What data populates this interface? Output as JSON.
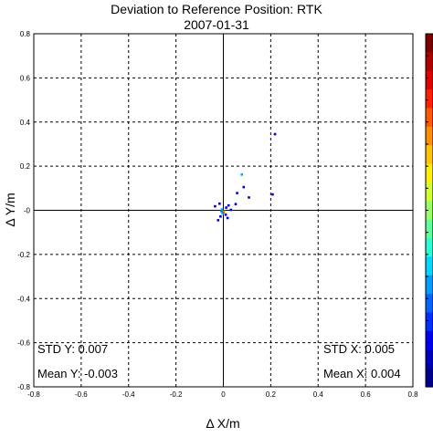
{
  "chart_data": {
    "type": "scatter",
    "title": "Deviation to Reference Position: RTK",
    "subtitle": "2007-01-31",
    "xlabel": "Δ X/m",
    "ylabel": "Δ Y/m",
    "xlim": [
      -0.8,
      0.8
    ],
    "ylim": [
      -0.8,
      0.8
    ],
    "x_ticks": [
      -0.8,
      -0.6,
      -0.4,
      -0.2,
      0,
      0.2,
      0.4,
      0.6,
      0.8
    ],
    "y_ticks": [
      -0.8,
      -0.6,
      -0.4,
      -0.2,
      0,
      0.2,
      0.4,
      0.6,
      0.8
    ],
    "x_tick_labels": [
      "-0.8",
      "-0.6",
      "-0.4",
      "-0.2",
      "0",
      "0.2",
      "0.4",
      "0.6",
      "0.8"
    ],
    "y_tick_labels": [
      "-0.8",
      "-0.6",
      "-0.4",
      "-0.2",
      "-0",
      "0.2",
      "0.4",
      "0.6",
      "0.8"
    ],
    "grid": true,
    "colormap": "jet",
    "points": [
      {
        "x": 0.218,
        "y": 0.345,
        "color": "#0000cc"
      },
      {
        "x": 0.078,
        "y": 0.162,
        "color": "#00a8ff"
      },
      {
        "x": 0.086,
        "y": 0.105,
        "color": "#0000dd"
      },
      {
        "x": 0.058,
        "y": 0.078,
        "color": "#0000cc"
      },
      {
        "x": 0.108,
        "y": 0.058,
        "color": "#0000cc"
      },
      {
        "x": 0.208,
        "y": 0.072,
        "color": "#0000cc"
      },
      {
        "x": 0.052,
        "y": 0.028,
        "color": "#0000cc"
      },
      {
        "x": -0.035,
        "y": 0.018,
        "color": "#0000cc"
      },
      {
        "x": 0.022,
        "y": 0.022,
        "color": "#0000cc"
      },
      {
        "x": 0.012,
        "y": 0.012,
        "color": "#0000ee"
      },
      {
        "x": -0.008,
        "y": -0.004,
        "color": "#0066ff"
      },
      {
        "x": -0.004,
        "y": -0.014,
        "color": "#00c8ff"
      },
      {
        "x": 0.004,
        "y": -0.006,
        "color": "#ffdd00"
      },
      {
        "x": 0.0,
        "y": -0.01,
        "color": "#ff3300"
      },
      {
        "x": -0.006,
        "y": 0.004,
        "color": "#00aaff"
      },
      {
        "x": 0.01,
        "y": -0.02,
        "color": "#0000cc"
      },
      {
        "x": -0.012,
        "y": -0.028,
        "color": "#0000cc"
      },
      {
        "x": -0.022,
        "y": -0.045,
        "color": "#0000cc"
      },
      {
        "x": 0.018,
        "y": -0.035,
        "color": "#0000cc"
      },
      {
        "x": 0.032,
        "y": 0.002,
        "color": "#0000cc"
      },
      {
        "x": -0.016,
        "y": 0.03,
        "color": "#0000cc"
      }
    ],
    "stats": {
      "std_y": "STD Y: 0.007",
      "mean_y": "Mean Y: -0.003",
      "std_x": "STD X: 0.005",
      "mean_x": "Mean X: 0.004"
    },
    "colorbar_colors": [
      "#7f0000",
      "#b00000",
      "#e00000",
      "#ff2000",
      "#ff5a00",
      "#ff9000",
      "#ffc400",
      "#fff000",
      "#d4ff2a",
      "#9aff64",
      "#60ff9e",
      "#26ffd8",
      "#00d8ff",
      "#00a0ff",
      "#0068ff",
      "#0030ff",
      "#0000f4",
      "#0000c0",
      "#00008f"
    ]
  }
}
